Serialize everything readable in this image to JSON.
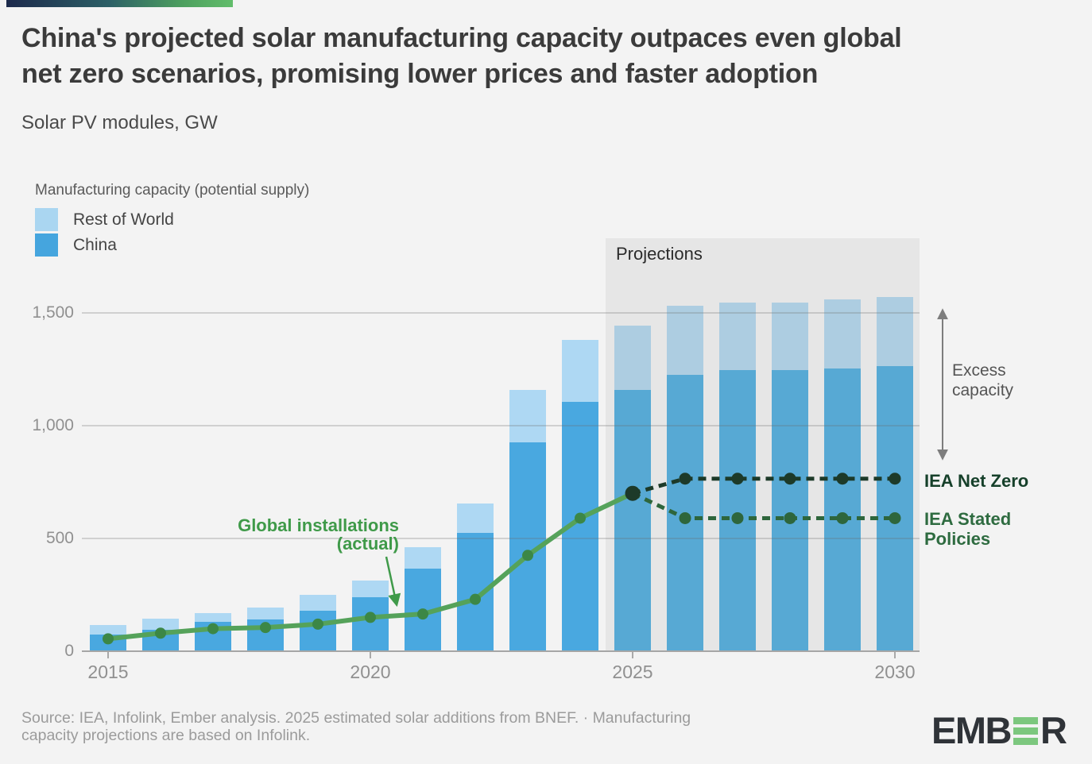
{
  "header": {
    "title": "China's projected solar manufacturing capacity outpaces even global\nnet zero scenarios, promising lower prices and faster adoption",
    "subtitle": "Solar PV modules, GW"
  },
  "legend": {
    "title": "Manufacturing capacity (potential supply)",
    "items": [
      {
        "label": "Rest of World",
        "color": "#aad6f1"
      },
      {
        "label": "China",
        "color": "#45a5de"
      }
    ]
  },
  "annotations": {
    "projections": "Projections",
    "global_installations": "Global installations\n(actual)",
    "excess_capacity": "Excess\ncapacity",
    "iea_net_zero": "IEA Net Zero",
    "iea_stated_policies": "IEA Stated\nPolicies"
  },
  "axes": {
    "yticks": [
      0,
      500,
      1000,
      1500
    ],
    "ytick_labels": [
      "0",
      "500",
      "1,000",
      "1,500"
    ],
    "xticks": [
      2015,
      2020,
      2025,
      2030
    ]
  },
  "footer": {
    "source": "Source: IEA, Infolink, Ember analysis. 2025 estimated solar additions from BNEF. · Manufacturing\ncapacity projections are based on Infolink.",
    "logo_prefix": "EMB",
    "logo_suffix": "R"
  },
  "colors": {
    "china": "#49a8e0",
    "china_projection": "#57a9d4",
    "rest_of_world": "#aed8f3",
    "rest_of_world_projection": "#adcde1",
    "installations_line": "#55a25a",
    "installations_dot": "#3c8746",
    "net_zero": "#1d3a29",
    "stated_policies": "#2e663c",
    "annotation_green": "#3f9a49",
    "projection_box": "#e6e6e6",
    "background": "#f3f3f3",
    "grid": "#cccccc",
    "axis": "#a6a6a6",
    "axis_text": "#909090",
    "arrow": "#7d7d7d",
    "logo_dark": "#2f3338",
    "logo_green": "#7cc77e"
  },
  "chart_data": {
    "type": "bar",
    "subtype": "stacked bars with line overlays",
    "title": "China's projected solar manufacturing capacity outpaces even global net zero scenarios, promising lower prices and faster adoption",
    "ylabel": "Solar PV modules, GW",
    "ylim": [
      0,
      1600
    ],
    "yticks": [
      0,
      500,
      1000,
      1500
    ],
    "xticks": [
      2015,
      2020,
      2025,
      2030
    ],
    "grid": true,
    "legend_position": "top-left",
    "projection_start_year": 2025,
    "categories": [
      2015,
      2016,
      2017,
      2018,
      2019,
      2020,
      2021,
      2022,
      2023,
      2024,
      2025,
      2026,
      2027,
      2028,
      2029,
      2030
    ],
    "series": [
      {
        "name": "China",
        "type": "bar",
        "stack": "capacity",
        "values": [
          75,
          95,
          130,
          140,
          180,
          240,
          365,
          525,
          925,
          1105,
          1160,
          1225,
          1245,
          1245,
          1255,
          1265
        ]
      },
      {
        "name": "Rest of World",
        "type": "bar",
        "stack": "capacity",
        "values": [
          40,
          48,
          40,
          55,
          70,
          75,
          95,
          130,
          235,
          275,
          285,
          305,
          300,
          300,
          305,
          305
        ]
      },
      {
        "name": "Global installations (actual)",
        "type": "line",
        "values": [
          55,
          80,
          100,
          105,
          120,
          150,
          165,
          230,
          425,
          590,
          700,
          null,
          null,
          null,
          null,
          null
        ]
      },
      {
        "name": "IEA Net Zero",
        "type": "dashed-line",
        "values": [
          null,
          null,
          null,
          null,
          null,
          null,
          null,
          null,
          null,
          null,
          700,
          765,
          765,
          765,
          765,
          765
        ]
      },
      {
        "name": "IEA Stated Policies",
        "type": "dashed-line",
        "values": [
          null,
          null,
          null,
          null,
          null,
          null,
          null,
          null,
          null,
          null,
          700,
          590,
          590,
          590,
          590,
          590
        ]
      }
    ]
  }
}
